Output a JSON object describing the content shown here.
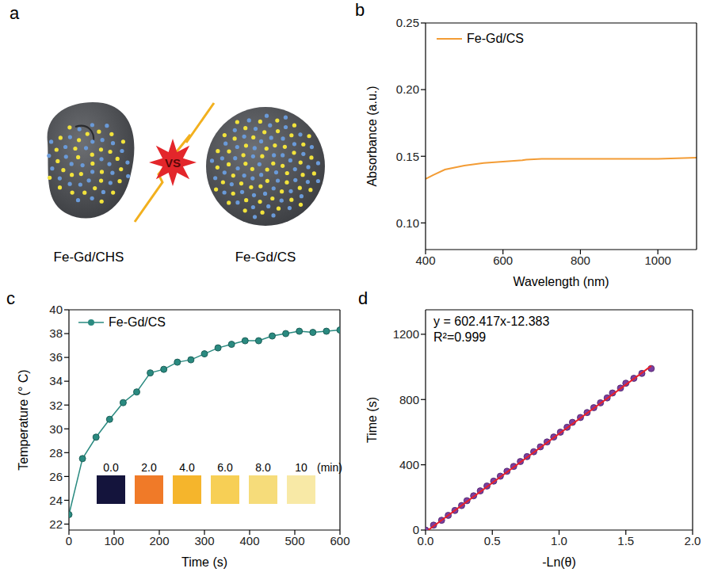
{
  "chart_data": [
    {
      "panel": "a",
      "type": "diagram",
      "labels": [
        "Fe-Gd/CHS",
        "VS",
        "Fe-Gd/CS"
      ]
    },
    {
      "panel": "b",
      "type": "line",
      "x_label": "Wavelength (nm)",
      "y_label": "Absorbance (a.u.)",
      "x": [
        400,
        420,
        450,
        500,
        550,
        600,
        650,
        660,
        700,
        800,
        900,
        1000,
        1100
      ],
      "series": [
        {
          "name": "Fe-Gd/CS",
          "color": "#f39c35",
          "line_style": "solid",
          "values": [
            0.133,
            0.136,
            0.14,
            0.143,
            0.145,
            0.146,
            0.147,
            0.1475,
            0.148,
            0.148,
            0.148,
            0.148,
            0.149
          ]
        }
      ],
      "xlim": [
        400,
        1100
      ],
      "xticks": [
        400,
        600,
        800,
        1000
      ],
      "ylim": [
        0.08,
        0.25
      ],
      "yticks": [
        {
          "value": 0.1,
          "label": "0.10"
        },
        0.15,
        {
          "value": 0.2,
          "label": "0.20"
        },
        0.25
      ],
      "legend": "upper left"
    },
    {
      "panel": "c",
      "type": "line",
      "x_label": "Time (s)",
      "y_label": "Temperature (° C)",
      "x": [
        0,
        30,
        60,
        90,
        120,
        150,
        180,
        210,
        240,
        270,
        300,
        330,
        360,
        390,
        420,
        450,
        480,
        510,
        540,
        570,
        600
      ],
      "series": [
        {
          "name": "Fe-Gd/CS",
          "color": "#2a8a80",
          "marker": "circle",
          "line_style": "solid",
          "values": [
            22.8,
            27.5,
            29.3,
            30.8,
            32.2,
            33.1,
            34.7,
            35.0,
            35.6,
            35.8,
            36.3,
            36.8,
            37.1,
            37.4,
            37.4,
            37.8,
            38.0,
            38.2,
            38.1,
            38.2,
            38.3
          ]
        }
      ],
      "xlim": [
        0,
        600
      ],
      "xticks": [
        0,
        100,
        200,
        300,
        400,
        500,
        600
      ],
      "ylim": [
        21.5,
        40
      ],
      "yticks": [
        22,
        24,
        26,
        28,
        30,
        32,
        34,
        36,
        38,
        40
      ],
      "legend": "upper left",
      "inset": {
        "labels": [
          "0.0",
          "2.0",
          "4.0",
          "6.0",
          "8.0",
          "10"
        ],
        "unit": "(min)",
        "colors": [
          "#14143c",
          "#f07a28",
          "#f5b52c",
          "#f7cf55",
          "#f6dc7a",
          "#f8e9a6"
        ]
      }
    },
    {
      "panel": "d",
      "type": "scatter",
      "x_label": "-Ln(θ)",
      "y_label": "Time (s)",
      "annotations": [
        "y = 602.417x-12.383",
        "R²=0.999"
      ],
      "series": [
        {
          "type": "scatter",
          "color": "#7b3fa0",
          "marker": "circle",
          "x": [
            0.0,
            0.06,
            0.12,
            0.17,
            0.22,
            0.27,
            0.31,
            0.36,
            0.41,
            0.46,
            0.51,
            0.56,
            0.61,
            0.66,
            0.71,
            0.76,
            0.81,
            0.86,
            0.91,
            0.96,
            1.01,
            1.06,
            1.1,
            1.16,
            1.21,
            1.26,
            1.31,
            1.36,
            1.4,
            1.46,
            1.5,
            1.56,
            1.62,
            1.69
          ],
          "values": [
            0,
            30,
            60,
            90,
            120,
            150,
            180,
            210,
            240,
            270,
            300,
            330,
            360,
            390,
            420,
            450,
            480,
            510,
            540,
            570,
            600,
            630,
            660,
            690,
            720,
            750,
            780,
            810,
            840,
            870,
            900,
            930,
            960,
            990
          ]
        },
        {
          "type": "line",
          "color": "#e8202a",
          "line_style": "solid",
          "x": [
            0.02,
            1.69
          ],
          "values": [
            0,
            1005.7
          ]
        }
      ],
      "xlim": [
        0,
        2
      ],
      "xticks": [
        {
          "value": 0,
          "label": "0.0"
        },
        0.5,
        {
          "value": 1,
          "label": "1.0"
        },
        1.5,
        {
          "value": 2,
          "label": "2.0"
        }
      ],
      "ylim": [
        0,
        1350
      ],
      "yticks": [
        0,
        400,
        800,
        1200
      ]
    }
  ]
}
